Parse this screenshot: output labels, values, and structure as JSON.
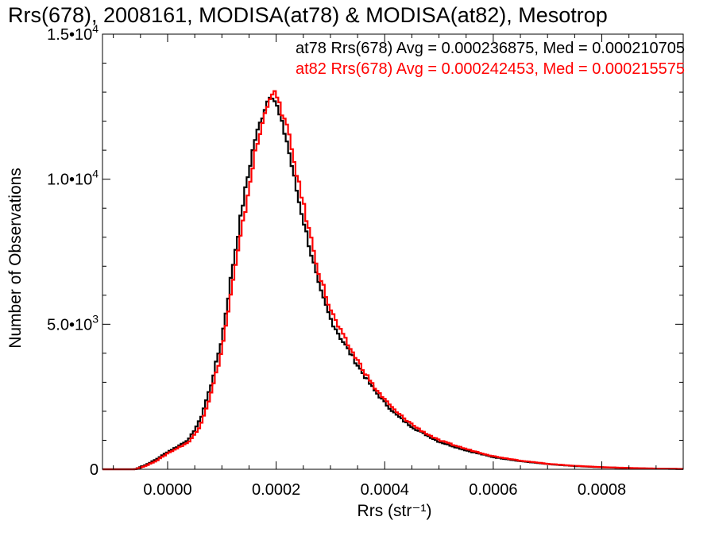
{
  "chart_data": {
    "type": "line",
    "title": "Rrs(678), 2008161, MODISA(at78) & MODISA(at82), Mesotrop",
    "xlabel": "Rrs (str⁻¹)",
    "ylabel": "Number of Observations",
    "xlim": [
      -0.00012,
      0.00095
    ],
    "ylim": [
      0,
      15000
    ],
    "x_ticks": [
      {
        "value": 0.0,
        "label": "0.0000"
      },
      {
        "value": 0.0002,
        "label": "0.0002"
      },
      {
        "value": 0.0004,
        "label": "0.0004"
      },
      {
        "value": 0.0006,
        "label": "0.0006"
      },
      {
        "value": 0.0008,
        "label": "0.0008"
      }
    ],
    "y_ticks": [
      {
        "value": 0,
        "mant": "0",
        "exp": ""
      },
      {
        "value": 5000,
        "mant": "5.0•10",
        "exp": "3"
      },
      {
        "value": 10000,
        "mant": "1.0•10",
        "exp": "4"
      },
      {
        "value": 15000,
        "mant": "1.5•10",
        "exp": "4"
      }
    ],
    "grid": false,
    "legend_position": "top-right",
    "series": [
      {
        "name": "at78",
        "color": "#000000",
        "stats_text": "at78 Rrs(678) Avg = 0.000236875, Med = 0.000210705",
        "x": [
          -6e-05,
          -4e-05,
          -2e-05,
          0.0,
          2e-05,
          4e-05,
          6e-05,
          8e-05,
          0.0001,
          0.00012,
          0.00014,
          0.00016,
          0.00018,
          0.00019,
          0.0002,
          0.00022,
          0.00024,
          0.00026,
          0.00028,
          0.0003,
          0.00032,
          0.00034,
          0.00036,
          0.00038,
          0.0004,
          0.00042,
          0.00044,
          0.00046,
          0.00048,
          0.0005,
          0.00055,
          0.0006,
          0.00065,
          0.0007,
          0.00075,
          0.0008,
          0.00085,
          0.0009,
          0.00095
        ],
        "y": [
          0,
          150,
          350,
          600,
          800,
          1050,
          1700,
          2900,
          4500,
          7000,
          9300,
          11300,
          12500,
          13000,
          12600,
          11300,
          9400,
          7800,
          6200,
          5200,
          4500,
          3900,
          3300,
          2750,
          2300,
          1900,
          1600,
          1350,
          1150,
          950,
          650,
          420,
          280,
          180,
          110,
          70,
          40,
          20,
          10
        ]
      },
      {
        "name": "at82",
        "color": "#ff0000",
        "stats_text": "at82 Rrs(678) Avg = 0.000242453, Med = 0.000215575",
        "x": [
          -6e-05,
          -4e-05,
          -2e-05,
          0.0,
          2e-05,
          4e-05,
          6e-05,
          8e-05,
          0.0001,
          0.00012,
          0.00014,
          0.00016,
          0.00018,
          0.00019,
          0.0002,
          0.00022,
          0.00024,
          0.00026,
          0.00028,
          0.0003,
          0.00032,
          0.00034,
          0.00036,
          0.00038,
          0.0004,
          0.00042,
          0.00044,
          0.00046,
          0.00048,
          0.0005,
          0.00055,
          0.0006,
          0.00065,
          0.0007,
          0.00075,
          0.0008,
          0.00085,
          0.0009,
          0.00095
        ],
        "y": [
          0,
          120,
          300,
          550,
          750,
          950,
          1500,
          2600,
          4100,
          6400,
          8600,
          10800,
          12300,
          13000,
          12900,
          11800,
          10000,
          8300,
          6700,
          5500,
          4700,
          4050,
          3450,
          2850,
          2400,
          2000,
          1700,
          1420,
          1200,
          1000,
          700,
          450,
          300,
          190,
          120,
          75,
          45,
          25,
          12
        ]
      }
    ]
  }
}
